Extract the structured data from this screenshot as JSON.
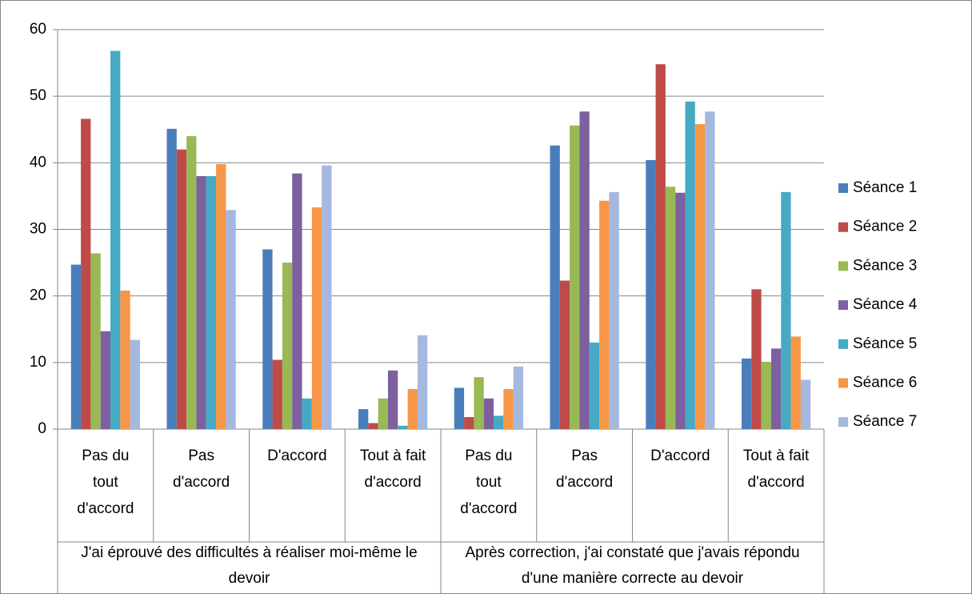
{
  "chart_data": {
    "type": "bar",
    "categories": [
      "Pas du tout d'accord",
      "Pas d'accord",
      "D'accord",
      "Tout à fait d'accord",
      "Pas du tout d'accord",
      "Pas d'accord",
      "D'accord",
      "Tout à fait d'accord"
    ],
    "category_groups": [
      "J'ai éprouvé des difficultés à réaliser moi-même le devoir",
      "Après correction, j'ai constaté que j'avais répondu d'une manière correcte au devoir"
    ],
    "series": [
      {
        "name": "Séance 1",
        "color": "#4a7ebb",
        "values": [
          24.7,
          45.1,
          27,
          3,
          6.2,
          42.6,
          40.4,
          10.6
        ]
      },
      {
        "name": "Séance 2",
        "color": "#be4b48",
        "values": [
          46.6,
          42,
          10.4,
          0.9,
          1.8,
          22.3,
          54.8,
          21
        ]
      },
      {
        "name": "Séance 3",
        "color": "#98b954",
        "values": [
          26.4,
          44,
          25,
          4.6,
          7.8,
          45.6,
          36.4,
          10.1
        ]
      },
      {
        "name": "Séance 4",
        "color": "#7d60a0",
        "values": [
          14.7,
          38,
          38.4,
          8.8,
          4.6,
          47.7,
          35.5,
          12.1
        ]
      },
      {
        "name": "Séance 5",
        "color": "#46aac5",
        "values": [
          56.8,
          38,
          4.6,
          0.5,
          2,
          13,
          49.2,
          35.6
        ]
      },
      {
        "name": "Séance 6",
        "color": "#f79646",
        "values": [
          20.8,
          39.8,
          33.3,
          6,
          6,
          34.3,
          45.8,
          13.9
        ]
      },
      {
        "name": "Séance 7",
        "color": "#a5b8e0",
        "values": [
          13.4,
          32.9,
          39.6,
          14.1,
          9.4,
          35.6,
          47.7,
          7.4
        ]
      }
    ],
    "ylim": [
      0,
      60
    ],
    "yticks": [
      0,
      10,
      20,
      30,
      40,
      50,
      60
    ],
    "grid": true,
    "legend": "right"
  }
}
